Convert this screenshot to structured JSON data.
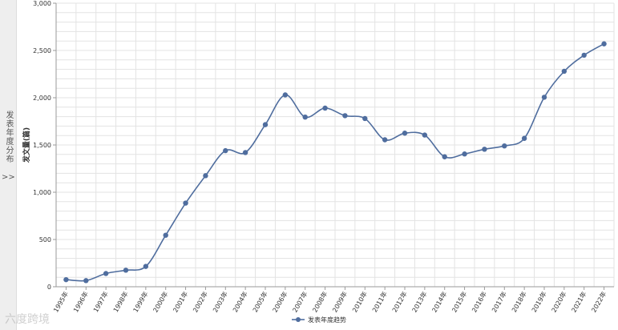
{
  "side_tab": {
    "label": "发表年度分布",
    "arrow": ">>"
  },
  "watermark": "六度跨境",
  "colors": {
    "series": "#4f6d9e",
    "grid": "#e3e3e3",
    "axis": "#9a9a9a"
  },
  "chart_data": {
    "type": "line",
    "ylabel": "发文量(篇)",
    "ylim": [
      0,
      3000
    ],
    "yticks": [
      0,
      500,
      1000,
      1500,
      2000,
      2500,
      3000
    ],
    "ytick_labels": [
      "0",
      "500",
      "1,000",
      "1,500",
      "2,000",
      "2,500",
      "3,000"
    ],
    "categories": [
      "1995年",
      "1996年",
      "1997年",
      "1998年",
      "1999年",
      "2000年",
      "2001年",
      "2002年",
      "2003年",
      "2004年",
      "2005年",
      "2006年",
      "2007年",
      "2008年",
      "2009年",
      "2010年",
      "2011年",
      "2012年",
      "2013年",
      "2014年",
      "2015年",
      "2016年",
      "2017年",
      "2018年",
      "2019年",
      "2020年",
      "2021年",
      "2022年"
    ],
    "series": [
      {
        "name": "发表年度趋势",
        "values": [
          75,
          65,
          140,
          175,
          215,
          545,
          885,
          1175,
          1440,
          1420,
          1715,
          2030,
          1795,
          1890,
          1810,
          1780,
          1555,
          1625,
          1605,
          1375,
          1405,
          1455,
          1490,
          1570,
          2005,
          2280,
          2450,
          2570
        ]
      }
    ],
    "grid": true,
    "legend_position": "bottom-center"
  }
}
